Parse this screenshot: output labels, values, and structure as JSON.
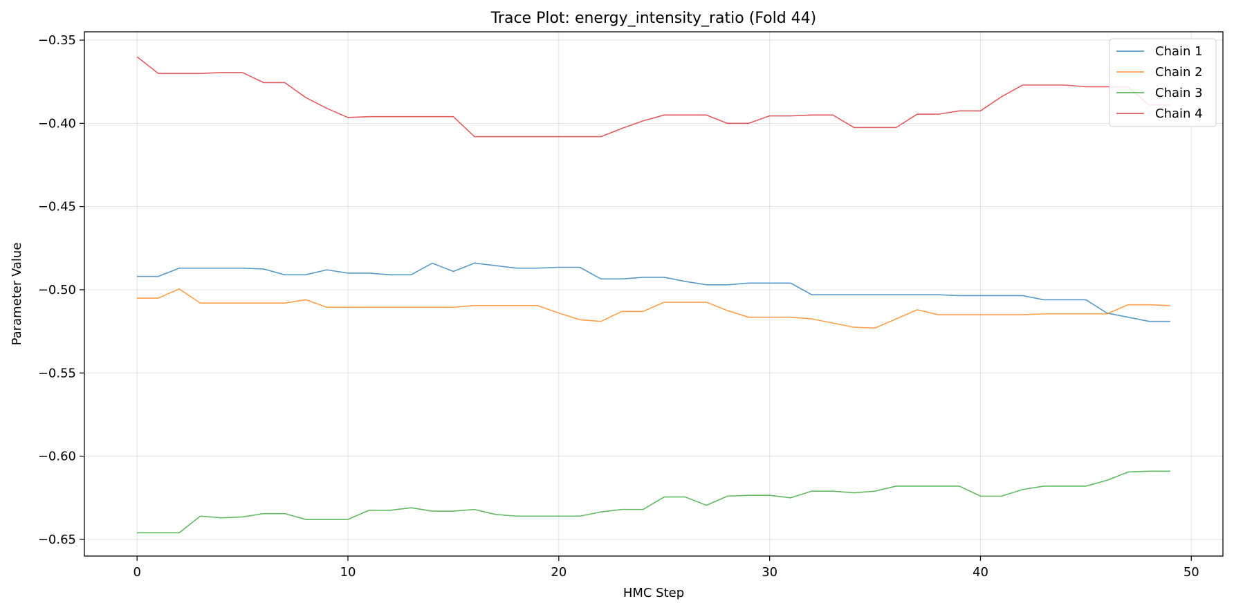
{
  "chart_data": {
    "type": "line",
    "title": "Trace Plot: energy_intensity_ratio (Fold 44)",
    "xlabel": "HMC Step",
    "ylabel": "Parameter Value",
    "xlim": [
      -2.5,
      51.5
    ],
    "ylim": [
      -0.66,
      -0.345
    ],
    "xticks": [
      0,
      10,
      20,
      30,
      40,
      50
    ],
    "yticks": [
      -0.35,
      -0.4,
      -0.45,
      -0.5,
      -0.55,
      -0.6,
      -0.65
    ],
    "ytick_labels": [
      "−0.35",
      "−0.40",
      "−0.45",
      "−0.50",
      "−0.55",
      "−0.60",
      "−0.65"
    ],
    "grid": true,
    "legend_position": "top-right",
    "x": [
      0,
      1,
      2,
      3,
      4,
      5,
      6,
      7,
      8,
      9,
      10,
      11,
      12,
      13,
      14,
      15,
      16,
      17,
      18,
      19,
      20,
      21,
      22,
      23,
      24,
      25,
      26,
      27,
      28,
      29,
      30,
      31,
      32,
      33,
      34,
      35,
      36,
      37,
      38,
      39,
      40,
      41,
      42,
      43,
      44,
      45,
      46,
      47,
      48,
      49
    ],
    "series": [
      {
        "name": "Chain 1",
        "color": "#1f77b4",
        "values": [
          -0.492,
          -0.492,
          -0.487,
          -0.487,
          -0.487,
          -0.487,
          -0.4875,
          -0.491,
          -0.491,
          -0.488,
          -0.49,
          -0.49,
          -0.491,
          -0.491,
          -0.484,
          -0.489,
          -0.484,
          -0.4855,
          -0.487,
          -0.487,
          -0.4865,
          -0.4865,
          -0.4935,
          -0.4935,
          -0.4925,
          -0.4925,
          -0.495,
          -0.497,
          -0.497,
          -0.496,
          -0.496,
          -0.496,
          -0.503,
          -0.503,
          -0.503,
          -0.503,
          -0.503,
          -0.503,
          -0.503,
          -0.5035,
          -0.5035,
          -0.5035,
          -0.5035,
          -0.506,
          -0.506,
          -0.506,
          -0.514,
          -0.5165,
          -0.519,
          -0.519
        ]
      },
      {
        "name": "Chain 2",
        "color": "#ff7f0e",
        "values": [
          -0.505,
          -0.505,
          -0.4995,
          -0.508,
          -0.508,
          -0.508,
          -0.508,
          -0.508,
          -0.506,
          -0.5105,
          -0.5105,
          -0.5105,
          -0.5105,
          -0.5105,
          -0.5105,
          -0.5105,
          -0.5095,
          -0.5095,
          -0.5095,
          -0.5095,
          -0.514,
          -0.518,
          -0.519,
          -0.513,
          -0.513,
          -0.5075,
          -0.5075,
          -0.5075,
          -0.5125,
          -0.5165,
          -0.5165,
          -0.5165,
          -0.5175,
          -0.52,
          -0.5225,
          -0.523,
          -0.5175,
          -0.512,
          -0.515,
          -0.515,
          -0.515,
          -0.515,
          -0.515,
          -0.5145,
          -0.5145,
          -0.5145,
          -0.5145,
          -0.509,
          -0.509,
          -0.5095
        ]
      },
      {
        "name": "Chain 3",
        "color": "#2ca02c",
        "values": [
          -0.646,
          -0.646,
          -0.646,
          -0.636,
          -0.637,
          -0.6365,
          -0.6345,
          -0.6345,
          -0.638,
          -0.638,
          -0.638,
          -0.6325,
          -0.6325,
          -0.631,
          -0.633,
          -0.633,
          -0.632,
          -0.635,
          -0.636,
          -0.636,
          -0.636,
          -0.636,
          -0.6335,
          -0.632,
          -0.632,
          -0.6245,
          -0.6245,
          -0.6295,
          -0.624,
          -0.6235,
          -0.6235,
          -0.625,
          -0.621,
          -0.621,
          -0.622,
          -0.621,
          -0.618,
          -0.618,
          -0.618,
          -0.618,
          -0.624,
          -0.624,
          -0.62,
          -0.618,
          -0.618,
          -0.618,
          -0.6145,
          -0.6095,
          -0.609,
          -0.609
        ]
      },
      {
        "name": "Chain 4",
        "color": "#d62728",
        "values": [
          -0.36,
          -0.37,
          -0.37,
          -0.37,
          -0.3695,
          -0.3695,
          -0.3755,
          -0.3755,
          -0.3845,
          -0.391,
          -0.3965,
          -0.396,
          -0.396,
          -0.396,
          -0.396,
          -0.396,
          -0.408,
          -0.408,
          -0.408,
          -0.408,
          -0.408,
          -0.408,
          -0.408,
          -0.403,
          -0.3985,
          -0.395,
          -0.395,
          -0.395,
          -0.4,
          -0.4,
          -0.3955,
          -0.3955,
          -0.395,
          -0.395,
          -0.4025,
          -0.4025,
          -0.4025,
          -0.3945,
          -0.3945,
          -0.3925,
          -0.3925,
          -0.384,
          -0.377,
          -0.377,
          -0.377,
          -0.378,
          -0.378,
          -0.378,
          -0.389,
          -0.389
        ]
      }
    ]
  }
}
